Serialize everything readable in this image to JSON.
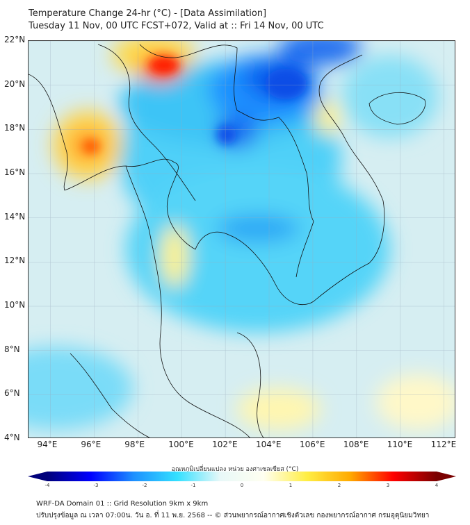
{
  "title": {
    "line1": "Temperature Change 24-hr (°C) - [Data Assimilation]",
    "line2": "Tuesday 11 Nov, 00 UTC FCST+072, Valid at :: Fri 14 Nov, 00 UTC"
  },
  "map": {
    "lon_range": [
      93.0,
      112.55
    ],
    "lat_range": [
      4,
      22
    ],
    "lon_ticks": [
      {
        "v": 94,
        "label": "94°E"
      },
      {
        "v": 96,
        "label": "96°E"
      },
      {
        "v": 98,
        "label": "98°E"
      },
      {
        "v": 100,
        "label": "100°E"
      },
      {
        "v": 102,
        "label": "102°E"
      },
      {
        "v": 104,
        "label": "104°E"
      },
      {
        "v": 106,
        "label": "106°E"
      },
      {
        "v": 108,
        "label": "108°E"
      },
      {
        "v": 110,
        "label": "110°E"
      },
      {
        "v": 112,
        "label": "112°E"
      }
    ],
    "lat_ticks": [
      {
        "v": 22,
        "label": "22°N"
      },
      {
        "v": 20,
        "label": "20°N"
      },
      {
        "v": 18,
        "label": "18°N"
      },
      {
        "v": 16,
        "label": "16°N"
      },
      {
        "v": 14,
        "label": "14°N"
      },
      {
        "v": 12,
        "label": "12°N"
      },
      {
        "v": 10,
        "label": "10°N"
      },
      {
        "v": 8,
        "label": "8°N"
      },
      {
        "v": 6,
        "label": "6°N"
      },
      {
        "v": 4,
        "label": "4°N"
      }
    ]
  },
  "colorbar": {
    "title": "อุณหภูมิเปลี่ยนแปลง หน่วย องศาเซลเซียส (°C)",
    "min": -4,
    "max": 4,
    "ticks": [
      "-4",
      "-3",
      "-2",
      "-1",
      "0",
      "1",
      "2",
      "3",
      "4"
    ],
    "colors": [
      "#00007a",
      "#0000ff",
      "#1e90ff",
      "#33e0ff",
      "#e8f8f8",
      "#fffff0",
      "#ffee44",
      "#ffaa00",
      "#ff0000",
      "#7a0000"
    ]
  },
  "footer": {
    "line1": "WRF-DA Domain 01 :: Grid Resolution 9km x 9km",
    "line2": "ปรับปรุงข้อมูล ณ เวลา 07:00น. วัน อ. ที่ 11 พ.ย. 2568 -- © ส่วนพยากรณ์อากาศเชิงตัวเลข กองพยากรณ์อากาศ กรมอุตุนิยมวิทยา"
  }
}
